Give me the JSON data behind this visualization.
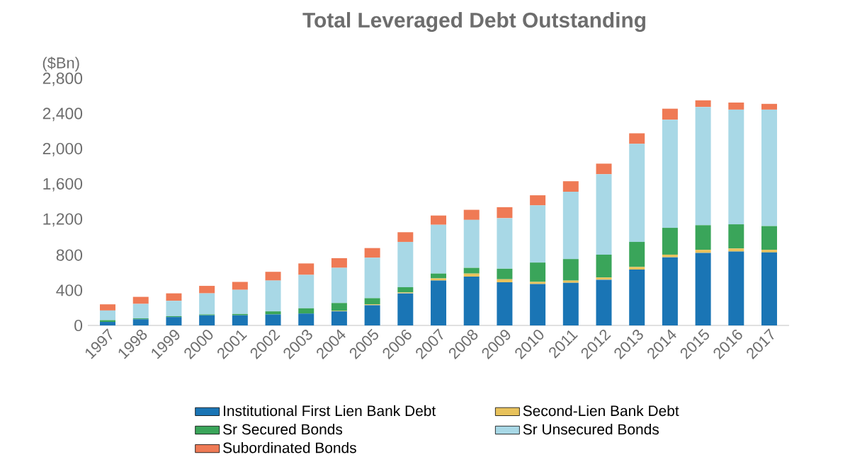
{
  "chart_data": {
    "type": "bar",
    "stacked": true,
    "title": "Total Leveraged Debt Outstanding",
    "ylabel": "($Bn)",
    "categories": [
      "1997",
      "1998",
      "1999",
      "2000",
      "2001",
      "2002",
      "2003",
      "2004",
      "2005",
      "2006",
      "2007",
      "2008",
      "2009",
      "2010",
      "2011",
      "2012",
      "2013",
      "2014",
      "2015",
      "2016",
      "2017"
    ],
    "series": [
      {
        "name": "Institutional First Lien Bank Debt",
        "color": "#1a75b5",
        "values": [
          40,
          70,
          95,
          115,
          115,
          125,
          135,
          160,
          230,
          365,
          510,
          555,
          490,
          470,
          485,
          520,
          635,
          775,
          825,
          840,
          830
        ]
      },
      {
        "name": "Second-Lien Bank Debt",
        "color": "#e8c25c",
        "values": [
          0,
          0,
          0,
          0,
          0,
          0,
          0,
          5,
          10,
          10,
          25,
          35,
          35,
          25,
          25,
          25,
          30,
          30,
          35,
          35,
          30
        ]
      },
      {
        "name": "Sr Secured Bonds",
        "color": "#3aa55a",
        "values": [
          20,
          10,
          10,
          10,
          15,
          35,
          60,
          90,
          70,
          60,
          55,
          65,
          120,
          220,
          245,
          260,
          285,
          305,
          280,
          275,
          270
        ]
      },
      {
        "name": "Sr Unsecured Bonds",
        "color": "#a8d8e6",
        "values": [
          110,
          165,
          175,
          240,
          275,
          350,
          380,
          400,
          460,
          515,
          555,
          545,
          575,
          650,
          765,
          915,
          1115,
          1230,
          1345,
          1305,
          1325
        ]
      },
      {
        "name": "Subordinated Bonds",
        "color": "#ef7a55",
        "values": [
          70,
          80,
          85,
          85,
          90,
          100,
          130,
          110,
          110,
          110,
          105,
          115,
          125,
          115,
          120,
          120,
          120,
          125,
          75,
          80,
          65
        ]
      }
    ],
    "ylim": [
      0,
      2800
    ],
    "yticks": [
      0,
      400,
      800,
      {
        "value": 1200,
        "label": "1,200"
      },
      {
        "value": 1600,
        "label": "1,600"
      },
      {
        "value": 2000,
        "label": "2,000"
      },
      {
        "value": 2400,
        "label": "2,400"
      },
      {
        "value": 2800,
        "label": "2,800"
      }
    ],
    "grid": false,
    "legend": "bottom"
  }
}
